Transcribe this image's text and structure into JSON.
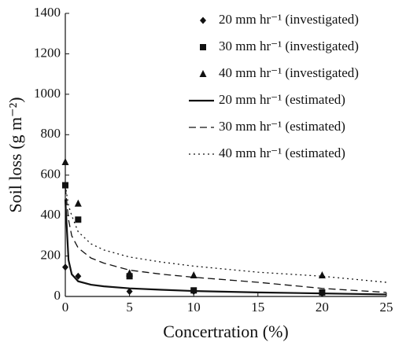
{
  "chart_data": {
    "type": "scatter",
    "xlabel": "Concertration (%)",
    "ylabel": "Soil loss (g m⁻²)",
    "xlim": [
      0,
      25
    ],
    "xticks": [
      0,
      5,
      10,
      15,
      20,
      25
    ],
    "ylim": [
      0,
      1400
    ],
    "yticks": [
      0,
      200,
      400,
      600,
      800,
      1000,
      1200,
      1400
    ],
    "legend": "upper right",
    "series": [
      {
        "name": "20 mm hr⁻¹ (investigated)",
        "type": "scatter",
        "marker": "diamond",
        "color": "#111111",
        "x": [
          0,
          1,
          5,
          10,
          20
        ],
        "values": [
          145,
          100,
          25,
          25,
          15
        ]
      },
      {
        "name": "30 mm hr⁻¹ (investigated)",
        "type": "scatter",
        "marker": "square",
        "color": "#111111",
        "x": [
          0,
          1,
          5,
          10,
          20
        ],
        "values": [
          550,
          380,
          100,
          30,
          20
        ]
      },
      {
        "name": "40 mm hr⁻¹ (investigated)",
        "type": "scatter",
        "marker": "triangle",
        "color": "#111111",
        "x": [
          0,
          1,
          5,
          10,
          20
        ],
        "values": [
          665,
          460,
          115,
          105,
          105
        ]
      },
      {
        "name": "20 mm hr⁻¹ (estimated)",
        "type": "line",
        "dash": "solid",
        "color": "#111111",
        "x": [
          0,
          0.25,
          0.5,
          1,
          2,
          3,
          5,
          7.5,
          10,
          15,
          20,
          25
        ],
        "values": [
          480,
          180,
          110,
          75,
          58,
          50,
          40,
          33,
          27,
          20,
          15,
          10
        ]
      },
      {
        "name": "30 mm hr⁻¹ (estimated)",
        "type": "line",
        "dash": "dashed",
        "color": "#111111",
        "x": [
          0,
          0.25,
          0.5,
          1,
          2,
          3,
          5,
          7.5,
          10,
          15,
          20,
          25
        ],
        "values": [
          540,
          380,
          300,
          240,
          190,
          165,
          130,
          110,
          95,
          70,
          40,
          20
        ]
      },
      {
        "name": "40 mm hr⁻¹ (estimated)",
        "type": "line",
        "dash": "dotted",
        "color": "#111111",
        "x": [
          0,
          0.25,
          0.5,
          1,
          2,
          3,
          5,
          7.5,
          10,
          15,
          20,
          25
        ],
        "values": [
          550,
          450,
          400,
          320,
          260,
          230,
          195,
          170,
          150,
          120,
          100,
          70
        ]
      }
    ]
  }
}
